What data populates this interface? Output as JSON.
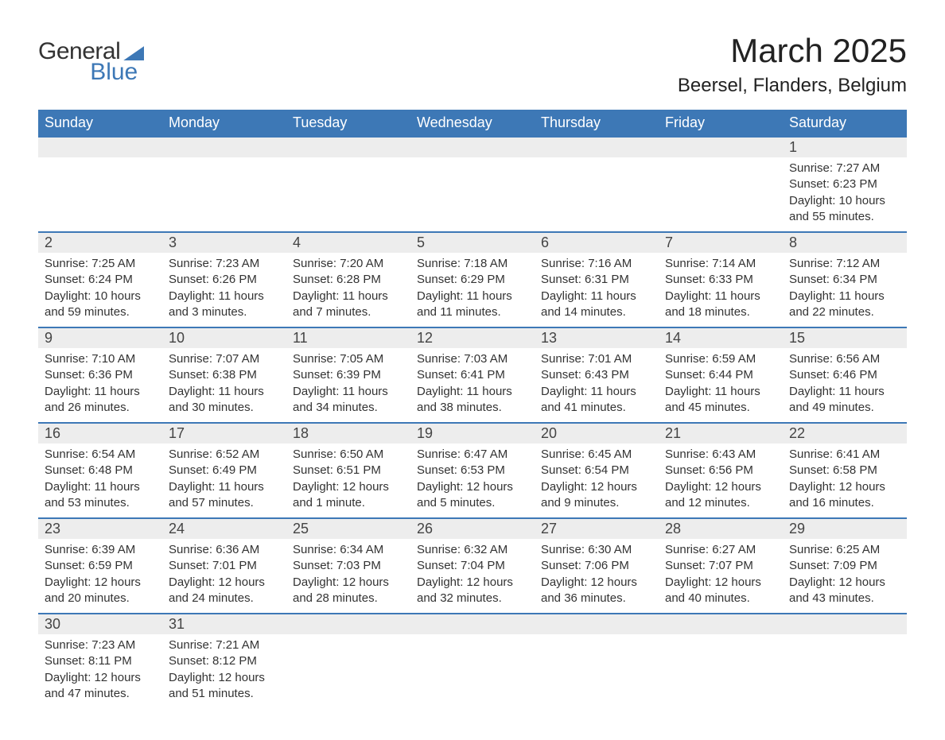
{
  "logo": {
    "text1": "General",
    "text2": "Blue"
  },
  "title": "March 2025",
  "location": "Beersel, Flanders, Belgium",
  "colors": {
    "header_bg": "#3d78b6",
    "header_text": "#ffffff",
    "daynum_bg": "#ededed",
    "text": "#333333",
    "divider": "#3d78b6",
    "page_bg": "#ffffff"
  },
  "weekdays": [
    "Sunday",
    "Monday",
    "Tuesday",
    "Wednesday",
    "Thursday",
    "Friday",
    "Saturday"
  ],
  "weeks": [
    [
      null,
      null,
      null,
      null,
      null,
      null,
      {
        "n": "1",
        "sunrise": "7:27 AM",
        "sunset": "6:23 PM",
        "daylight": "10 hours and 55 minutes."
      }
    ],
    [
      {
        "n": "2",
        "sunrise": "7:25 AM",
        "sunset": "6:24 PM",
        "daylight": "10 hours and 59 minutes."
      },
      {
        "n": "3",
        "sunrise": "7:23 AM",
        "sunset": "6:26 PM",
        "daylight": "11 hours and 3 minutes."
      },
      {
        "n": "4",
        "sunrise": "7:20 AM",
        "sunset": "6:28 PM",
        "daylight": "11 hours and 7 minutes."
      },
      {
        "n": "5",
        "sunrise": "7:18 AM",
        "sunset": "6:29 PM",
        "daylight": "11 hours and 11 minutes."
      },
      {
        "n": "6",
        "sunrise": "7:16 AM",
        "sunset": "6:31 PM",
        "daylight": "11 hours and 14 minutes."
      },
      {
        "n": "7",
        "sunrise": "7:14 AM",
        "sunset": "6:33 PM",
        "daylight": "11 hours and 18 minutes."
      },
      {
        "n": "8",
        "sunrise": "7:12 AM",
        "sunset": "6:34 PM",
        "daylight": "11 hours and 22 minutes."
      }
    ],
    [
      {
        "n": "9",
        "sunrise": "7:10 AM",
        "sunset": "6:36 PM",
        "daylight": "11 hours and 26 minutes."
      },
      {
        "n": "10",
        "sunrise": "7:07 AM",
        "sunset": "6:38 PM",
        "daylight": "11 hours and 30 minutes."
      },
      {
        "n": "11",
        "sunrise": "7:05 AM",
        "sunset": "6:39 PM",
        "daylight": "11 hours and 34 minutes."
      },
      {
        "n": "12",
        "sunrise": "7:03 AM",
        "sunset": "6:41 PM",
        "daylight": "11 hours and 38 minutes."
      },
      {
        "n": "13",
        "sunrise": "7:01 AM",
        "sunset": "6:43 PM",
        "daylight": "11 hours and 41 minutes."
      },
      {
        "n": "14",
        "sunrise": "6:59 AM",
        "sunset": "6:44 PM",
        "daylight": "11 hours and 45 minutes."
      },
      {
        "n": "15",
        "sunrise": "6:56 AM",
        "sunset": "6:46 PM",
        "daylight": "11 hours and 49 minutes."
      }
    ],
    [
      {
        "n": "16",
        "sunrise": "6:54 AM",
        "sunset": "6:48 PM",
        "daylight": "11 hours and 53 minutes."
      },
      {
        "n": "17",
        "sunrise": "6:52 AM",
        "sunset": "6:49 PM",
        "daylight": "11 hours and 57 minutes."
      },
      {
        "n": "18",
        "sunrise": "6:50 AM",
        "sunset": "6:51 PM",
        "daylight": "12 hours and 1 minute."
      },
      {
        "n": "19",
        "sunrise": "6:47 AM",
        "sunset": "6:53 PM",
        "daylight": "12 hours and 5 minutes."
      },
      {
        "n": "20",
        "sunrise": "6:45 AM",
        "sunset": "6:54 PM",
        "daylight": "12 hours and 9 minutes."
      },
      {
        "n": "21",
        "sunrise": "6:43 AM",
        "sunset": "6:56 PM",
        "daylight": "12 hours and 12 minutes."
      },
      {
        "n": "22",
        "sunrise": "6:41 AM",
        "sunset": "6:58 PM",
        "daylight": "12 hours and 16 minutes."
      }
    ],
    [
      {
        "n": "23",
        "sunrise": "6:39 AM",
        "sunset": "6:59 PM",
        "daylight": "12 hours and 20 minutes."
      },
      {
        "n": "24",
        "sunrise": "6:36 AM",
        "sunset": "7:01 PM",
        "daylight": "12 hours and 24 minutes."
      },
      {
        "n": "25",
        "sunrise": "6:34 AM",
        "sunset": "7:03 PM",
        "daylight": "12 hours and 28 minutes."
      },
      {
        "n": "26",
        "sunrise": "6:32 AM",
        "sunset": "7:04 PM",
        "daylight": "12 hours and 32 minutes."
      },
      {
        "n": "27",
        "sunrise": "6:30 AM",
        "sunset": "7:06 PM",
        "daylight": "12 hours and 36 minutes."
      },
      {
        "n": "28",
        "sunrise": "6:27 AM",
        "sunset": "7:07 PM",
        "daylight": "12 hours and 40 minutes."
      },
      {
        "n": "29",
        "sunrise": "6:25 AM",
        "sunset": "7:09 PM",
        "daylight": "12 hours and 43 minutes."
      }
    ],
    [
      {
        "n": "30",
        "sunrise": "7:23 AM",
        "sunset": "8:11 PM",
        "daylight": "12 hours and 47 minutes."
      },
      {
        "n": "31",
        "sunrise": "7:21 AM",
        "sunset": "8:12 PM",
        "daylight": "12 hours and 51 minutes."
      },
      null,
      null,
      null,
      null,
      null
    ]
  ],
  "labels": {
    "sunrise_prefix": "Sunrise: ",
    "sunset_prefix": "Sunset: ",
    "daylight_prefix": "Daylight: "
  }
}
